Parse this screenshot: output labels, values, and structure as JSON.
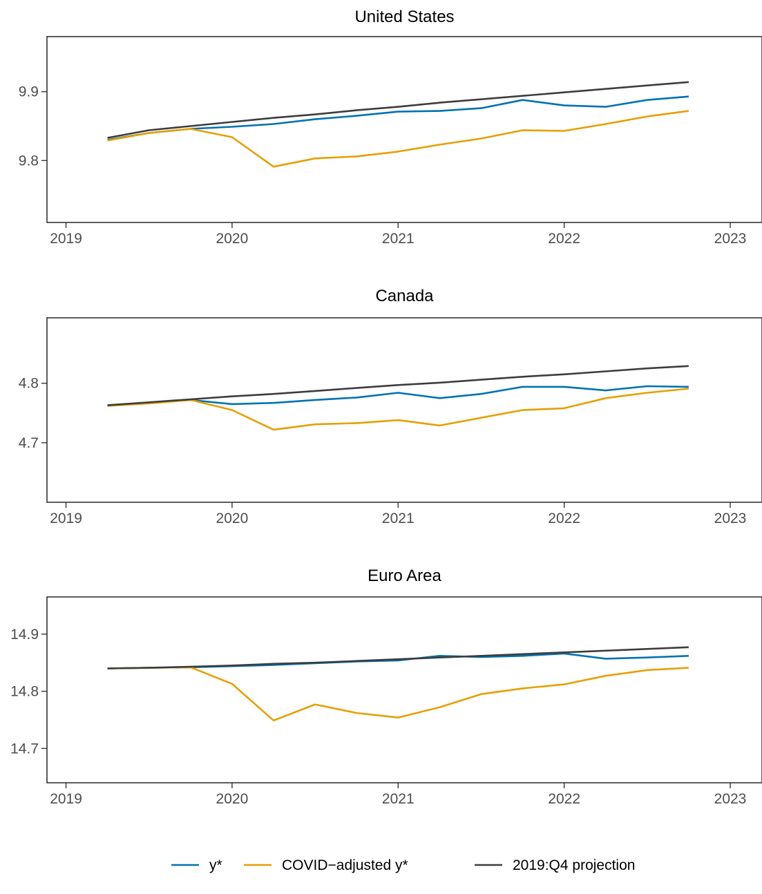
{
  "chart_data": [
    {
      "type": "line",
      "title": "United States",
      "x": [
        "2019-Q2",
        "2019-Q3",
        "2019-Q4",
        "2020-Q1",
        "2020-Q2",
        "2020-Q3",
        "2020-Q4",
        "2021-Q1",
        "2021-Q2",
        "2021-Q3",
        "2021-Q4",
        "2022-Q1",
        "2022-Q2",
        "2022-Q3",
        "2022-Q4"
      ],
      "xlim": [
        "2018-11-20",
        "2023-03-10"
      ],
      "xticks": [
        "2019",
        "2020",
        "2021",
        "2022",
        "2023"
      ],
      "ylim": [
        9.71,
        9.98
      ],
      "yticks": [
        "9.8",
        "9.9"
      ],
      "series": [
        {
          "name": "y*",
          "color": "#0072B2",
          "values": [
            9.83,
            9.84,
            9.846,
            9.849,
            9.853,
            9.86,
            9.865,
            9.871,
            9.872,
            9.876,
            9.888,
            9.88,
            9.878,
            9.888,
            9.893
          ]
        },
        {
          "name": "COVID−adjusted y*",
          "color": "#E69F00",
          "values": [
            9.829,
            9.84,
            9.846,
            9.834,
            9.791,
            9.803,
            9.806,
            9.813,
            9.823,
            9.832,
            9.844,
            9.843,
            9.853,
            9.864,
            9.872
          ]
        },
        {
          "name": "2019:Q4 projection",
          "color": "#3d3d3d",
          "values": [
            9.833,
            9.844,
            9.85,
            9.856,
            9.862,
            9.867,
            9.873,
            9.878,
            9.884,
            9.889,
            9.894,
            9.899,
            9.904,
            9.909,
            9.914
          ]
        }
      ]
    },
    {
      "type": "line",
      "title": "Canada",
      "x": [
        "2019-Q2",
        "2019-Q3",
        "2019-Q4",
        "2020-Q1",
        "2020-Q2",
        "2020-Q3",
        "2020-Q4",
        "2021-Q1",
        "2021-Q2",
        "2021-Q3",
        "2021-Q4",
        "2022-Q1",
        "2022-Q2",
        "2022-Q3",
        "2022-Q4"
      ],
      "xlim": [
        "2018-11-20",
        "2023-03-10"
      ],
      "xticks": [
        "2019",
        "2020",
        "2021",
        "2022",
        "2023"
      ],
      "ylim": [
        4.6,
        4.91
      ],
      "yticks": [
        "4.7",
        "4.8"
      ],
      "series": [
        {
          "name": "y*",
          "color": "#0072B2",
          "values": [
            4.763,
            4.767,
            4.772,
            4.765,
            4.767,
            4.772,
            4.776,
            4.784,
            4.775,
            4.782,
            4.794,
            4.794,
            4.788,
            4.795,
            4.794
          ]
        },
        {
          "name": "COVID−adjusted y*",
          "color": "#E69F00",
          "values": [
            4.762,
            4.766,
            4.772,
            4.755,
            4.722,
            4.731,
            4.733,
            4.738,
            4.729,
            4.742,
            4.755,
            4.758,
            4.775,
            4.784,
            4.791
          ]
        },
        {
          "name": "2019:Q4 projection",
          "color": "#3d3d3d",
          "values": [
            4.763,
            4.768,
            4.773,
            4.778,
            4.782,
            4.787,
            4.792,
            4.797,
            4.801,
            4.806,
            4.811,
            4.815,
            4.82,
            4.825,
            4.829
          ]
        }
      ]
    },
    {
      "type": "line",
      "title": "Euro Area",
      "x": [
        "2019-Q2",
        "2019-Q3",
        "2019-Q4",
        "2020-Q1",
        "2020-Q2",
        "2020-Q3",
        "2020-Q4",
        "2021-Q1",
        "2021-Q2",
        "2021-Q3",
        "2021-Q4",
        "2022-Q1",
        "2022-Q2",
        "2022-Q3",
        "2022-Q4"
      ],
      "xlim": [
        "2018-11-20",
        "2023-03-10"
      ],
      "xticks": [
        "2019",
        "2020",
        "2021",
        "2022",
        "2023"
      ],
      "ylim": [
        14.64,
        14.965
      ],
      "yticks": [
        "14.7",
        "14.8",
        "14.9"
      ],
      "series": [
        {
          "name": "y*",
          "color": "#0072B2",
          "values": [
            14.84,
            14.841,
            14.842,
            14.844,
            14.846,
            14.849,
            14.852,
            14.854,
            14.862,
            14.86,
            14.862,
            14.866,
            14.857,
            14.859,
            14.862
          ]
        },
        {
          "name": "COVID−adjusted y*",
          "color": "#E69F00",
          "values": [
            14.84,
            14.841,
            14.842,
            14.813,
            14.749,
            14.777,
            14.762,
            14.754,
            14.772,
            14.795,
            14.805,
            14.812,
            14.827,
            14.837,
            14.841
          ]
        },
        {
          "name": "2019:Q4 projection",
          "color": "#3d3d3d",
          "values": [
            14.84,
            14.841,
            14.843,
            14.845,
            14.848,
            14.85,
            14.853,
            14.856,
            14.859,
            14.862,
            14.865,
            14.868,
            14.871,
            14.874,
            14.877
          ]
        }
      ]
    }
  ],
  "legend": {
    "position": "bottom",
    "items": [
      {
        "label": "y*",
        "color": "#0072B2"
      },
      {
        "label": "COVID−adjusted y*",
        "color": "#E69F00"
      },
      {
        "label": "2019:Q4 projection",
        "color": "#3d3d3d"
      }
    ]
  }
}
